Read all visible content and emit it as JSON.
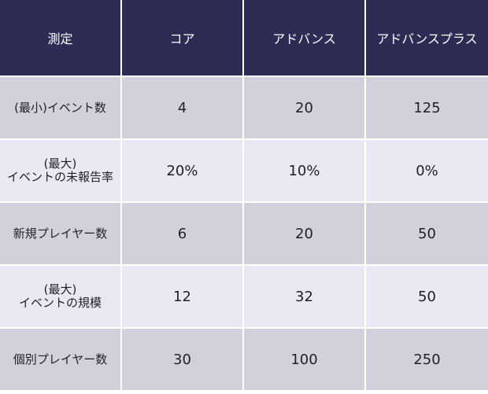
{
  "colors": {
    "header_bg": "#2d2c55",
    "header_text": "#ffffff",
    "row_odd_bg": "#d1d1db",
    "row_even_bg": "#e9e9f3",
    "cell_text": "#1f1f2c"
  },
  "table": {
    "headers": [
      "測定",
      "コア",
      "アドバンス",
      "アドバンスプラス"
    ],
    "rows": [
      {
        "label": [
          "(最小)イベント数"
        ],
        "values": [
          "4",
          "20",
          "125"
        ]
      },
      {
        "label": [
          "(最大)",
          "イベントの未報告率"
        ],
        "values": [
          "20%",
          "10%",
          "0%"
        ]
      },
      {
        "label": [
          "新規プレイヤー数"
        ],
        "values": [
          "6",
          "20",
          "50"
        ]
      },
      {
        "label": [
          "(最大)",
          "イベントの規模"
        ],
        "values": [
          "12",
          "32",
          "50"
        ]
      },
      {
        "label": [
          "個別プレイヤー数"
        ],
        "values": [
          "30",
          "100",
          "250"
        ]
      }
    ]
  }
}
